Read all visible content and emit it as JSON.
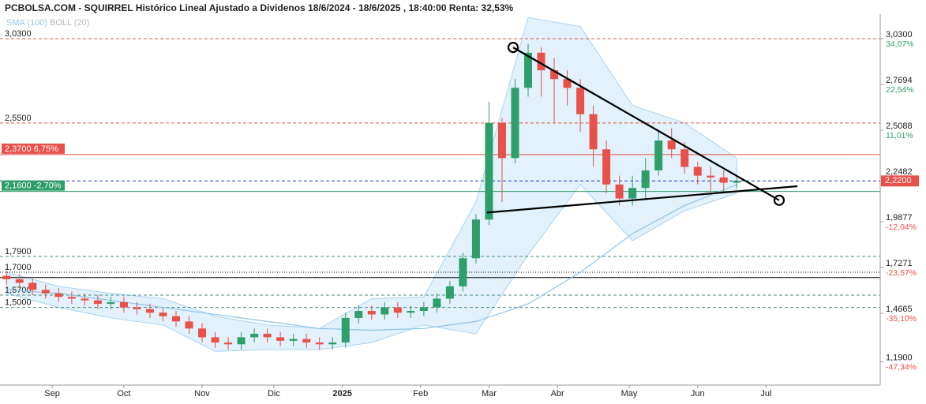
{
  "chart_data": {
    "type": "candlestick",
    "title": "PCBOLSA.COM - SQUIRREL Histórico Lineal Ajustado a Dividenos 18/6/2024 - 18/6/2025 , 18:40:00 Renta: 32,53%",
    "legend": [
      "SMA (100)",
      "BOLL (20)"
    ],
    "up_color": "#2e9e6b",
    "down_color": "#e8504a",
    "xlim": [
      0,
      270
    ],
    "xticks": [
      {
        "value": 16,
        "label": "Sep"
      },
      {
        "value": 38,
        "label": "Oct"
      },
      {
        "value": 62,
        "label": "Nov"
      },
      {
        "value": 84,
        "label": "Dic"
      },
      {
        "value": 105,
        "label": "2025"
      },
      {
        "value": 129,
        "label": "Feb"
      },
      {
        "value": 150,
        "label": "Mar"
      },
      {
        "value": 171,
        "label": "Abr"
      },
      {
        "value": 193,
        "label": "May"
      },
      {
        "value": 214,
        "label": "Jun"
      },
      {
        "value": 235,
        "label": "Jul"
      }
    ],
    "ylim": [
      1.0,
      3.2
    ],
    "yticks": [
      {
        "value": 3.03,
        "label": "3,0300"
      },
      {
        "value": 2.7694,
        "label": "2,7694"
      },
      {
        "value": 2.5088,
        "label": "2,5088"
      },
      {
        "value": 2.2482,
        "label": "2,2482"
      },
      {
        "value": 1.9877,
        "label": "1,9877"
      },
      {
        "value": 1.7271,
        "label": "1,7271"
      },
      {
        "value": 1.4665,
        "label": "1,4665"
      },
      {
        "value": 1.19,
        "label": "1,1900"
      }
    ],
    "ytick_change_labels": [
      "34,07%",
      "22,54%",
      "11,01%",
      null,
      "-12,04%",
      "-23,57%",
      "-35,10%",
      "-47,34%"
    ],
    "levels": [
      {
        "value": 3.03,
        "label": "3,0300",
        "color": "#e8504a",
        "style": "dashed"
      },
      {
        "value": 2.55,
        "label": "2,5500",
        "color": "#e8504a",
        "style": "dashed"
      },
      {
        "value": 2.37,
        "label": "2,3700 6,75%",
        "color": "#e8504a",
        "style": "box"
      },
      {
        "value": 2.22,
        "label": "2,2200",
        "color": "#1f3fbf",
        "style": "current"
      },
      {
        "value": 2.16,
        "label": "2,1600 -2,70%",
        "color": "#2e9e6b",
        "style": "box"
      },
      {
        "value": 1.79,
        "label": "1,7900",
        "color": "#4a8a80",
        "style": "dashed"
      },
      {
        "value": 1.7,
        "label": "1,7000",
        "color": "#000000",
        "style": "dotted"
      },
      {
        "value": 1.67,
        "label": null,
        "color": "#000000",
        "style": "solid"
      },
      {
        "value": 1.57,
        "label": "1,5700",
        "color": "#4a8a80",
        "style": "dashed"
      },
      {
        "value": 1.5,
        "label": "1,5000",
        "color": "#4a8a80",
        "style": "dashed"
      }
    ],
    "x": [
      2,
      6,
      10,
      14,
      18,
      22,
      26,
      30,
      34,
      38,
      42,
      46,
      50,
      54,
      58,
      62,
      66,
      70,
      74,
      78,
      82,
      86,
      90,
      94,
      98,
      102,
      106,
      110,
      114,
      118,
      122,
      126,
      130,
      134,
      138,
      142,
      146,
      150,
      154,
      158,
      162,
      166,
      170,
      174,
      178,
      182,
      186,
      190,
      194,
      198,
      202,
      206,
      210,
      214,
      218,
      222,
      226
    ],
    "open": [
      1.68,
      1.66,
      1.64,
      1.6,
      1.58,
      1.56,
      1.55,
      1.54,
      1.52,
      1.53,
      1.5,
      1.49,
      1.47,
      1.45,
      1.42,
      1.38,
      1.33,
      1.3,
      1.29,
      1.33,
      1.35,
      1.33,
      1.31,
      1.32,
      1.3,
      1.29,
      1.3,
      1.44,
      1.48,
      1.46,
      1.5,
      1.47,
      1.48,
      1.5,
      1.55,
      1.62,
      1.78,
      2.0,
      2.55,
      2.35,
      2.75,
      2.95,
      2.85,
      2.8,
      2.75,
      2.6,
      2.4,
      2.2,
      2.12,
      2.18,
      2.28,
      2.45,
      2.4,
      2.3,
      2.25,
      2.24,
      2.21
    ],
    "high": [
      1.71,
      1.69,
      1.67,
      1.63,
      1.61,
      1.59,
      1.58,
      1.57,
      1.56,
      1.56,
      1.53,
      1.52,
      1.5,
      1.48,
      1.45,
      1.41,
      1.36,
      1.33,
      1.36,
      1.38,
      1.38,
      1.36,
      1.35,
      1.35,
      1.33,
      1.33,
      1.47,
      1.51,
      1.51,
      1.53,
      1.53,
      1.51,
      1.53,
      1.58,
      1.65,
      1.81,
      2.03,
      2.67,
      2.58,
      2.8,
      3.0,
      2.98,
      2.92,
      2.85,
      2.8,
      2.65,
      2.45,
      2.25,
      2.25,
      2.35,
      2.5,
      2.52,
      2.44,
      2.33,
      2.3,
      2.28,
      2.25
    ],
    "low": [
      1.63,
      1.61,
      1.57,
      1.55,
      1.53,
      1.52,
      1.51,
      1.49,
      1.49,
      1.47,
      1.46,
      1.44,
      1.42,
      1.39,
      1.35,
      1.3,
      1.27,
      1.26,
      1.26,
      1.3,
      1.3,
      1.28,
      1.28,
      1.27,
      1.26,
      1.26,
      1.27,
      1.41,
      1.43,
      1.43,
      1.44,
      1.44,
      1.45,
      1.47,
      1.52,
      1.59,
      1.75,
      1.97,
      2.1,
      2.32,
      2.7,
      2.7,
      2.55,
      2.65,
      2.5,
      2.3,
      2.15,
      2.08,
      2.08,
      2.12,
      2.25,
      2.35,
      2.26,
      2.2,
      2.16,
      2.16,
      2.18
    ],
    "close": [
      1.66,
      1.64,
      1.6,
      1.58,
      1.56,
      1.55,
      1.54,
      1.52,
      1.53,
      1.5,
      1.49,
      1.47,
      1.45,
      1.42,
      1.38,
      1.33,
      1.3,
      1.29,
      1.33,
      1.35,
      1.33,
      1.31,
      1.32,
      1.3,
      1.29,
      1.3,
      1.44,
      1.48,
      1.46,
      1.5,
      1.47,
      1.48,
      1.5,
      1.55,
      1.62,
      1.78,
      2.0,
      2.55,
      2.35,
      2.75,
      2.95,
      2.85,
      2.8,
      2.75,
      2.6,
      2.4,
      2.2,
      2.12,
      2.18,
      2.28,
      2.45,
      2.4,
      2.3,
      2.25,
      2.24,
      2.21,
      2.22
    ],
    "indicator_x": [
      2,
      18,
      34,
      50,
      66,
      82,
      98,
      114,
      130,
      146,
      162,
      178,
      194,
      210,
      226
    ],
    "sma": {
      "name": "SMA (100)",
      "color": "#8ec5ea",
      "values": [
        1.6,
        1.58,
        1.54,
        1.5,
        1.46,
        1.42,
        1.38,
        1.37,
        1.38,
        1.42,
        1.52,
        1.7,
        1.92,
        2.08,
        2.2
      ]
    },
    "boll_upper": [
      1.7,
      1.62,
      1.58,
      1.55,
      1.45,
      1.4,
      1.38,
      1.55,
      1.56,
      2.1,
      3.15,
      3.1,
      2.65,
      2.55,
      2.35
    ],
    "boll_lower": [
      1.58,
      1.5,
      1.44,
      1.4,
      1.25,
      1.26,
      1.26,
      1.3,
      1.4,
      1.35,
      1.8,
      2.2,
      1.88,
      2.05,
      2.15
    ],
    "trendlines": [
      {
        "x": [
          157.4,
          239
        ],
        "values": [
          2.98,
          2.11
        ],
        "circles": true
      },
      {
        "x": [
          149.4,
          244.6
        ],
        "values": [
          2.04,
          2.19
        ],
        "circles": false
      }
    ]
  }
}
